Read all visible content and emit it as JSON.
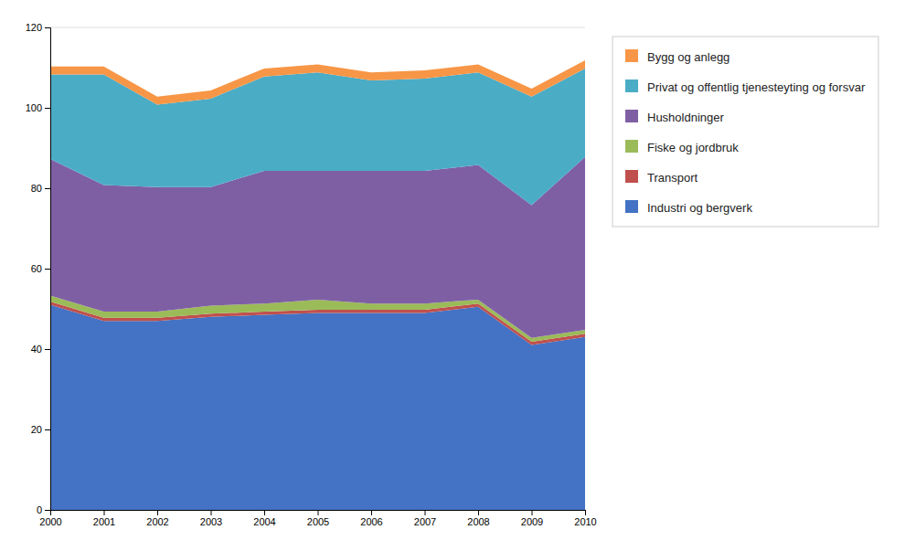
{
  "chart_data": {
    "type": "area",
    "stacked": true,
    "x": [
      2000,
      2001,
      2002,
      2003,
      2004,
      2005,
      2006,
      2007,
      2008,
      2009,
      2010
    ],
    "xlim": [
      2000,
      2010
    ],
    "xticks": [
      2000,
      2001,
      2002,
      2003,
      2004,
      2005,
      2006,
      2007,
      2008,
      2009,
      2010
    ],
    "ylim": [
      0,
      120
    ],
    "yticks": [
      0,
      20,
      40,
      60,
      80,
      100,
      120
    ],
    "grid": true,
    "legend": "right",
    "series": [
      {
        "name": "Industri og bergverk",
        "color": "#4472C4",
        "values": [
          51.0,
          47.0,
          47.0,
          48.0,
          48.5,
          49.0,
          49.0,
          49.0,
          50.5,
          41.0,
          43.0
        ]
      },
      {
        "name": "Transport",
        "color": "#C0504D",
        "values": [
          0.8,
          0.8,
          0.8,
          0.8,
          0.8,
          0.8,
          0.8,
          0.8,
          0.8,
          0.8,
          0.8
        ]
      },
      {
        "name": "Fiske og jordbruk",
        "color": "#9BBB59",
        "values": [
          1.5,
          1.5,
          1.5,
          2.0,
          2.0,
          2.5,
          1.5,
          1.5,
          1.0,
          1.0,
          1.0
        ]
      },
      {
        "name": "Husholdninger",
        "color": "#7F5FA4",
        "values": [
          34.0,
          31.5,
          31.0,
          29.5,
          33.0,
          32.0,
          33.0,
          33.0,
          33.5,
          33.0,
          43.0
        ]
      },
      {
        "name": "Privat og offentlig tjenesteyting og forsvar",
        "color": "#4BACC6",
        "values": [
          21.0,
          27.5,
          20.5,
          22.0,
          23.5,
          24.5,
          22.5,
          23.0,
          23.0,
          27.0,
          22.0
        ]
      },
      {
        "name": "Bygg og anlegg",
        "color": "#F79646",
        "values": [
          2.0,
          2.0,
          2.0,
          2.0,
          2.0,
          2.0,
          2.0,
          2.0,
          2.0,
          2.0,
          2.0
        ]
      }
    ]
  }
}
